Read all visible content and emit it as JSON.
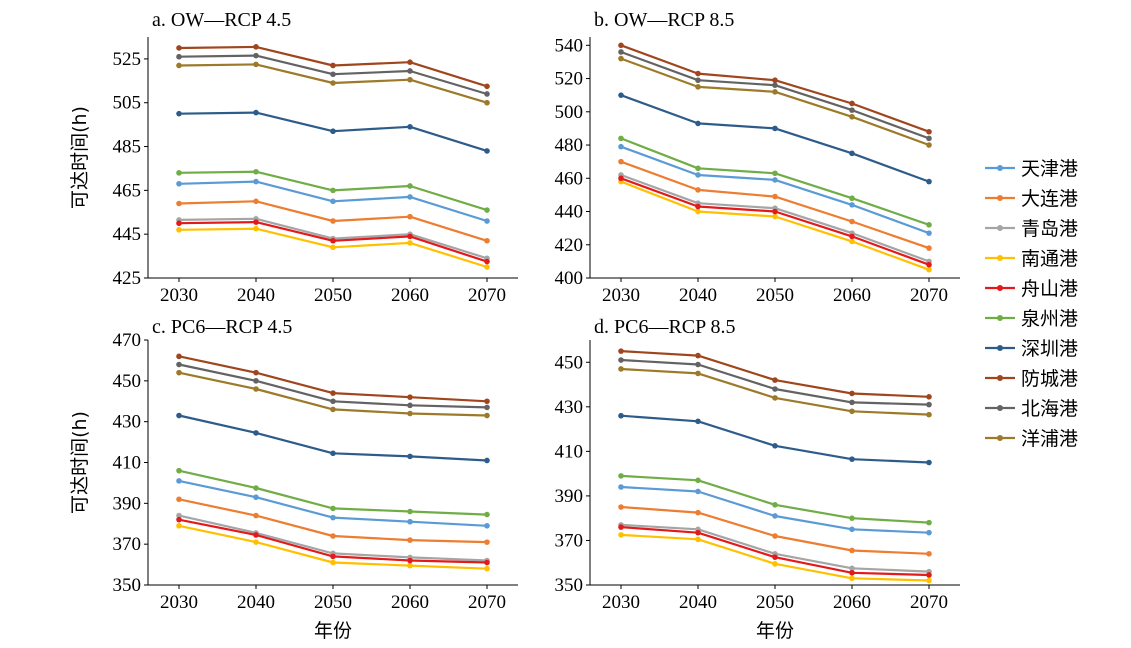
{
  "legend": {
    "items": [
      "天津港",
      "大连港",
      "青岛港",
      "南通港",
      "舟山港",
      "泉州港",
      "深圳港",
      "防城港",
      "北海港",
      "洋浦港"
    ],
    "colors": [
      "#5B9BD5",
      "#ED7D31",
      "#A5A5A5",
      "#FFC000",
      "#E31A1C",
      "#70AD47",
      "#2E5C8A",
      "#A0461E",
      "#636363",
      "#9C7A2A"
    ]
  },
  "chart_data": [
    {
      "type": "line",
      "title": "a. OW—RCP 4.5",
      "xlabel": "",
      "ylabel": "可达时间(h)",
      "categories": [
        "2030",
        "2040",
        "2050",
        "2060",
        "2070"
      ],
      "ylim": [
        425,
        535
      ],
      "yticks": [
        425,
        445,
        465,
        485,
        505,
        525
      ],
      "series": [
        {
          "name": "天津港",
          "values": [
            468,
            469,
            460,
            462,
            451
          ]
        },
        {
          "name": "大连港",
          "values": [
            459,
            460,
            451,
            453,
            442
          ]
        },
        {
          "name": "青岛港",
          "values": [
            451.5,
            452,
            443,
            445,
            434
          ]
        },
        {
          "name": "南通港",
          "values": [
            447,
            447.5,
            439,
            441,
            430
          ]
        },
        {
          "name": "舟山港",
          "values": [
            450,
            450.5,
            442,
            444,
            432.5
          ]
        },
        {
          "name": "泉州港",
          "values": [
            473,
            473.5,
            465,
            467,
            456
          ]
        },
        {
          "name": "深圳港",
          "values": [
            500,
            500.5,
            492,
            494,
            483
          ]
        },
        {
          "name": "防城港",
          "values": [
            530,
            530.5,
            522,
            523.5,
            512.5
          ]
        },
        {
          "name": "北海港",
          "values": [
            526,
            526.5,
            518,
            519.5,
            509
          ]
        },
        {
          "name": "洋浦港",
          "values": [
            522,
            522.5,
            514,
            515.5,
            505
          ]
        }
      ]
    },
    {
      "type": "line",
      "title": "b. OW—RCP 8.5",
      "xlabel": "",
      "ylabel": "",
      "categories": [
        "2030",
        "2040",
        "2050",
        "2060",
        "2070"
      ],
      "ylim": [
        400,
        545
      ],
      "yticks": [
        400,
        420,
        440,
        460,
        480,
        500,
        520,
        540
      ],
      "series": [
        {
          "name": "天津港",
          "values": [
            479,
            462,
            459,
            444,
            427
          ]
        },
        {
          "name": "大连港",
          "values": [
            470,
            453,
            449,
            434,
            418
          ]
        },
        {
          "name": "青岛港",
          "values": [
            462,
            445,
            442,
            427,
            410
          ]
        },
        {
          "name": "南通港",
          "values": [
            458,
            440,
            437,
            422,
            405
          ]
        },
        {
          "name": "舟山港",
          "values": [
            460,
            443,
            440,
            425,
            408
          ]
        },
        {
          "name": "泉州港",
          "values": [
            484,
            466,
            463,
            448,
            432
          ]
        },
        {
          "name": "深圳港",
          "values": [
            510,
            493,
            490,
            475,
            458
          ]
        },
        {
          "name": "防城港",
          "values": [
            540,
            523,
            519,
            505,
            488
          ]
        },
        {
          "name": "北海港",
          "values": [
            536,
            519,
            516,
            501,
            484
          ]
        },
        {
          "name": "洋浦港",
          "values": [
            532,
            515,
            512,
            497,
            480
          ]
        }
      ]
    },
    {
      "type": "line",
      "title": "c. PC6—RCP 4.5",
      "xlabel": "年份",
      "ylabel": "可达时间(h)",
      "categories": [
        "2030",
        "2040",
        "2050",
        "2060",
        "2070"
      ],
      "ylim": [
        350,
        470
      ],
      "yticks": [
        350,
        370,
        390,
        410,
        430,
        450,
        470
      ],
      "series": [
        {
          "name": "天津港",
          "values": [
            401,
            393,
            383,
            381,
            379
          ]
        },
        {
          "name": "大连港",
          "values": [
            392,
            384,
            374,
            372,
            371
          ]
        },
        {
          "name": "青岛港",
          "values": [
            384,
            375.5,
            365.5,
            363.5,
            362
          ]
        },
        {
          "name": "南通港",
          "values": [
            379,
            371,
            361,
            359.5,
            358
          ]
        },
        {
          "name": "舟山港",
          "values": [
            382,
            374.5,
            364,
            362,
            361
          ]
        },
        {
          "name": "泉州港",
          "values": [
            406,
            397.5,
            387.5,
            386,
            384.5
          ]
        },
        {
          "name": "深圳港",
          "values": [
            433,
            424.5,
            414.5,
            413,
            411
          ]
        },
        {
          "name": "防城港",
          "values": [
            462,
            454,
            444,
            442,
            440
          ]
        },
        {
          "name": "北海港",
          "values": [
            458,
            450,
            440,
            438,
            437
          ]
        },
        {
          "name": "洋浦港",
          "values": [
            454,
            446,
            436,
            434,
            433
          ]
        }
      ]
    },
    {
      "type": "line",
      "title": "d. PC6—RCP 8.5",
      "xlabel": "年份",
      "ylabel": "",
      "categories": [
        "2030",
        "2040",
        "2050",
        "2060",
        "2070"
      ],
      "ylim": [
        350,
        460
      ],
      "yticks": [
        350,
        370,
        390,
        410,
        430,
        450
      ],
      "series": [
        {
          "name": "天津港",
          "values": [
            394,
            392,
            381,
            375,
            373.5
          ]
        },
        {
          "name": "大连港",
          "values": [
            385,
            382.5,
            372,
            365.5,
            364
          ]
        },
        {
          "name": "青岛港",
          "values": [
            377,
            375,
            364,
            357.5,
            356
          ]
        },
        {
          "name": "南通港",
          "values": [
            372.5,
            370.5,
            359.5,
            353,
            352
          ]
        },
        {
          "name": "舟山港",
          "values": [
            376,
            373.5,
            362.5,
            355.5,
            354.5
          ]
        },
        {
          "name": "泉州港",
          "values": [
            399,
            397,
            386,
            380,
            378
          ]
        },
        {
          "name": "深圳港",
          "values": [
            426,
            423.5,
            412.5,
            406.5,
            405
          ]
        },
        {
          "name": "防城港",
          "values": [
            455,
            453,
            442,
            436,
            434.5
          ]
        },
        {
          "name": "北海港",
          "values": [
            451,
            449,
            438,
            432,
            431
          ]
        },
        {
          "name": "洋浦港",
          "values": [
            447,
            445,
            434,
            428,
            426.5
          ]
        }
      ]
    }
  ]
}
